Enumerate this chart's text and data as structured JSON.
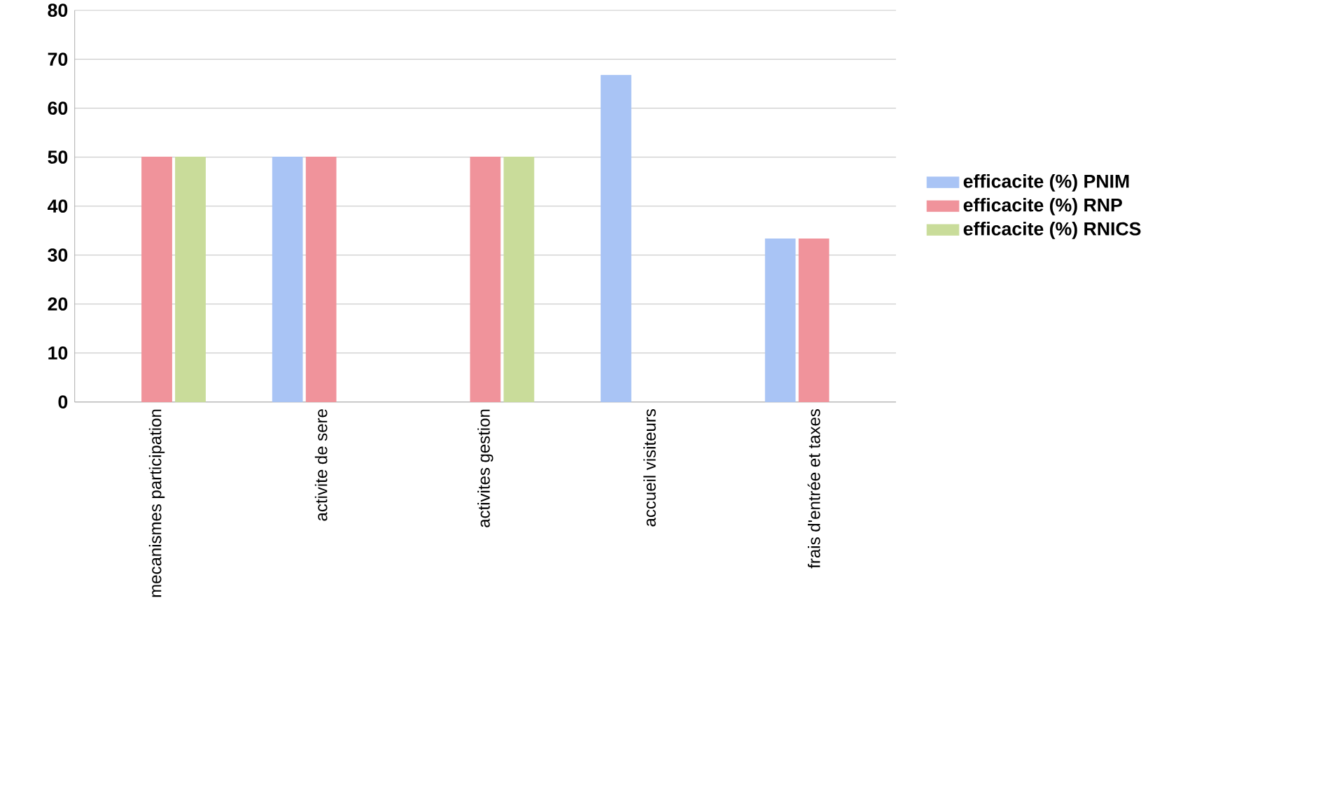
{
  "chart_data": {
    "type": "bar",
    "categories": [
      "mecanismes participation",
      "activite de sere",
      "activites gestion",
      "accueil visiteurs",
      "frais d'entrée et taxes"
    ],
    "series": [
      {
        "name": "efficacite (%) PNIM",
        "color": "#a9c4f5",
        "values": [
          null,
          50,
          null,
          66.7,
          33.3
        ]
      },
      {
        "name": "efficacite (%) RNP",
        "color": "#f0939b",
        "values": [
          50,
          50,
          50,
          null,
          33.3
        ]
      },
      {
        "name": "efficacite (%) RNICS",
        "color": "#c9dc9a",
        "values": [
          50,
          null,
          50,
          null,
          null
        ]
      }
    ],
    "ylim": [
      0,
      80
    ],
    "yticks": [
      0,
      10,
      20,
      30,
      40,
      50,
      60,
      70,
      80
    ],
    "grid": "y",
    "legend": "right"
  }
}
